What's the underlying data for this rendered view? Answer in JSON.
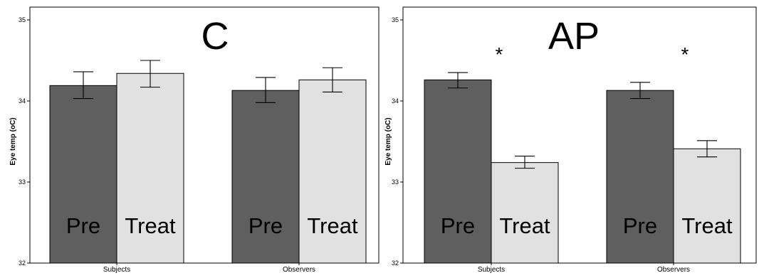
{
  "colors": {
    "pre": "#5f5f5f",
    "treat": "#e1e1e1"
  },
  "chart_data": [
    {
      "type": "bar",
      "title": "C",
      "ylabel": "Eye temp (oC)",
      "ylim": [
        32,
        35
      ],
      "yticks": [
        "32",
        "33",
        "34",
        "35"
      ],
      "categories": [
        "Subjects",
        "Observers"
      ],
      "series": [
        {
          "name": "Pre",
          "values": [
            34.19,
            34.13
          ],
          "err_low": [
            34.03,
            33.98
          ],
          "err_high": [
            34.36,
            34.29
          ]
        },
        {
          "name": "Treat",
          "values": [
            34.34,
            34.26
          ],
          "err_low": [
            34.17,
            34.11
          ],
          "err_high": [
            34.5,
            34.41
          ]
        }
      ],
      "significance": [
        "",
        ""
      ]
    },
    {
      "type": "bar",
      "title": "AP",
      "ylabel": "Eye temp (oC)",
      "ylim": [
        32,
        35
      ],
      "yticks": [
        "32",
        "33",
        "34",
        "35"
      ],
      "categories": [
        "Subjects",
        "Observers"
      ],
      "series": [
        {
          "name": "Pre",
          "values": [
            34.26,
            34.13
          ],
          "err_low": [
            34.16,
            34.03
          ],
          "err_high": [
            34.35,
            34.23
          ]
        },
        {
          "name": "Treat",
          "values": [
            33.24,
            33.41
          ],
          "err_low": [
            33.17,
            33.31
          ],
          "err_high": [
            33.32,
            33.51
          ]
        }
      ],
      "significance": [
        "*",
        "*"
      ]
    }
  ]
}
